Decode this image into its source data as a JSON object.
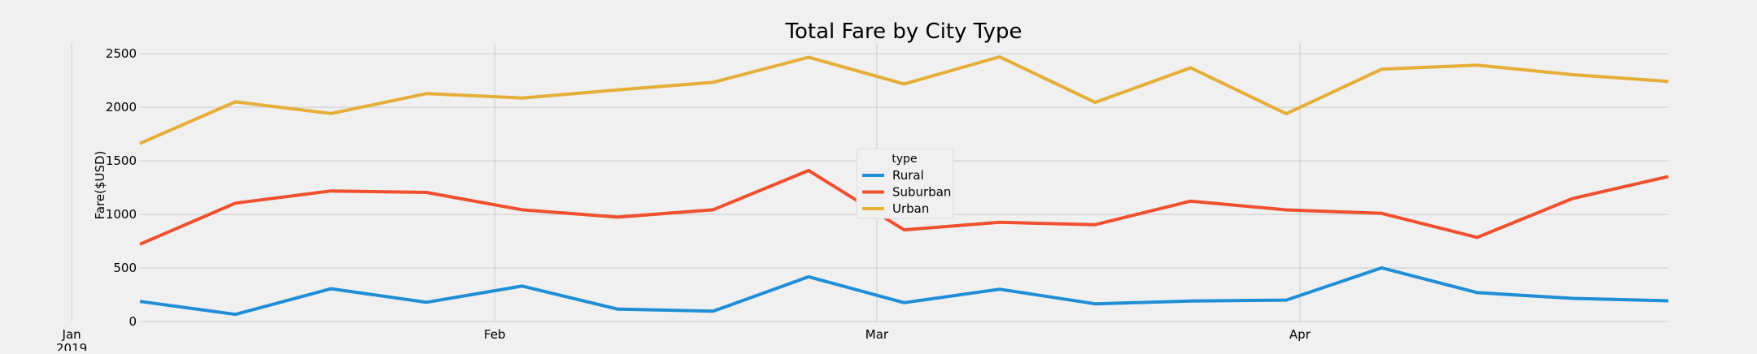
{
  "chart_data": {
    "type": "line",
    "title": "Total Fare by City Type",
    "xlabel": "",
    "ylabel": "Fare($USD)",
    "x": [
      "2019-01-06",
      "2019-01-13",
      "2019-01-20",
      "2019-01-27",
      "2019-02-03",
      "2019-02-10",
      "2019-02-17",
      "2019-02-24",
      "2019-03-03",
      "2019-03-10",
      "2019-03-17",
      "2019-03-24",
      "2019-03-31",
      "2019-04-07",
      "2019-04-14",
      "2019-04-21",
      "2019-04-28"
    ],
    "xlim": [
      "2019-01-06",
      "2019-04-28"
    ],
    "x_ticks": [
      {
        "date": "2019-01-01",
        "label": "Jan",
        "sublabel": "2019"
      },
      {
        "date": "2019-02-01",
        "label": "Feb",
        "sublabel": ""
      },
      {
        "date": "2019-03-01",
        "label": "Mar",
        "sublabel": ""
      },
      {
        "date": "2019-04-01",
        "label": "Apr",
        "sublabel": ""
      }
    ],
    "ylim": [
      0,
      2600
    ],
    "y_ticks": [
      0,
      500,
      1000,
      1500,
      2000,
      2500
    ],
    "grid": true,
    "legend": {
      "title": "type",
      "placement": "center"
    },
    "series": [
      {
        "name": "Rural",
        "color": "#1f8ed6",
        "values": [
          188,
          67,
          306,
          180,
          331,
          116,
          96,
          418,
          176,
          302,
          165,
          192,
          200,
          501,
          270,
          216,
          193
        ]
      },
      {
        "name": "Suburban",
        "color": "#f1502f",
        "values": [
          722,
          1105,
          1219,
          1205,
          1043,
          975,
          1043,
          1410,
          856,
          926,
          904,
          1124,
          1042,
          1010,
          785,
          1149,
          1354
        ]
      },
      {
        "name": "Urban",
        "color": "#e5ae38",
        "values": [
          1662,
          2051,
          1942,
          2128,
          2087,
          2163,
          2233,
          2467,
          2218,
          2471,
          2046,
          2369,
          1940,
          2356,
          2394,
          2304,
          2242
        ]
      }
    ]
  }
}
